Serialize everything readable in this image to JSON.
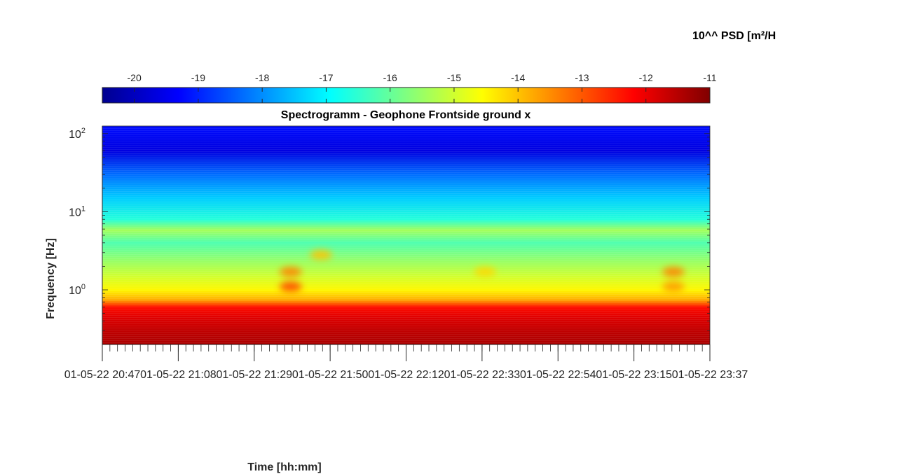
{
  "chart_data": {
    "type": "heatmap",
    "title": "Spectrogramm - Geophone Frontside ground x",
    "xlabel": "Time [hh:mm]",
    "ylabel": "Frequency [Hz]",
    "x_tick_labels": [
      "01-05-22 20:47",
      "01-05-22 21:08",
      "01-05-22 21:29",
      "01-05-22 21:50",
      "01-05-22 22:12",
      "01-05-22 22:33",
      "01-05-22 22:54",
      "01-05-22 23:15",
      "01-05-22 23:37"
    ],
    "y_scale": "log",
    "y_tick_values": [
      1,
      10,
      100
    ],
    "y_tick_exponents": [
      "0",
      "1",
      "2"
    ],
    "y_tick_base": "10",
    "ylim": [
      0.2,
      125
    ],
    "colorbar": {
      "label": "10^^ PSD [m²/H",
      "ticks": [
        "-20",
        "-19",
        "-18",
        "-17",
        "-16",
        "-15",
        "-14",
        "-13",
        "-12",
        "-11"
      ],
      "range": [
        -20.5,
        -11
      ],
      "colormap": "jet",
      "location": "top"
    },
    "psd_log10_profile": [
      {
        "frequency_hz": 0.2,
        "value": -11.4
      },
      {
        "frequency_hz": 0.3,
        "value": -11.6
      },
      {
        "frequency_hz": 0.45,
        "value": -11.9
      },
      {
        "frequency_hz": 0.6,
        "value": -12.3
      },
      {
        "frequency_hz": 0.75,
        "value": -13.8
      },
      {
        "frequency_hz": 1.0,
        "value": -14.5
      },
      {
        "frequency_hz": 1.5,
        "value": -15.0
      },
      {
        "frequency_hz": 2.5,
        "value": -15.6
      },
      {
        "frequency_hz": 4.0,
        "value": -16.2
      },
      {
        "frequency_hz": 5.8,
        "value": -15.4
      },
      {
        "frequency_hz": 8.0,
        "value": -16.6
      },
      {
        "frequency_hz": 15.0,
        "value": -17.4
      },
      {
        "frequency_hz": 30.0,
        "value": -18.3
      },
      {
        "frequency_hz": 60.0,
        "value": -19.6
      },
      {
        "frequency_hz": 125.0,
        "value": -19.2
      }
    ],
    "hotspots": [
      {
        "time_fraction": 0.31,
        "frequency_hz": 1.1,
        "value": -12.8
      },
      {
        "time_fraction": 0.31,
        "frequency_hz": 1.7,
        "value": -13.4
      },
      {
        "time_fraction": 0.36,
        "frequency_hz": 2.8,
        "value": -14.0
      },
      {
        "time_fraction": 0.63,
        "frequency_hz": 1.7,
        "value": -14.2
      },
      {
        "time_fraction": 0.94,
        "frequency_hz": 1.7,
        "value": -13.4
      },
      {
        "time_fraction": 0.94,
        "frequency_hz": 1.1,
        "value": -13.6
      }
    ]
  }
}
